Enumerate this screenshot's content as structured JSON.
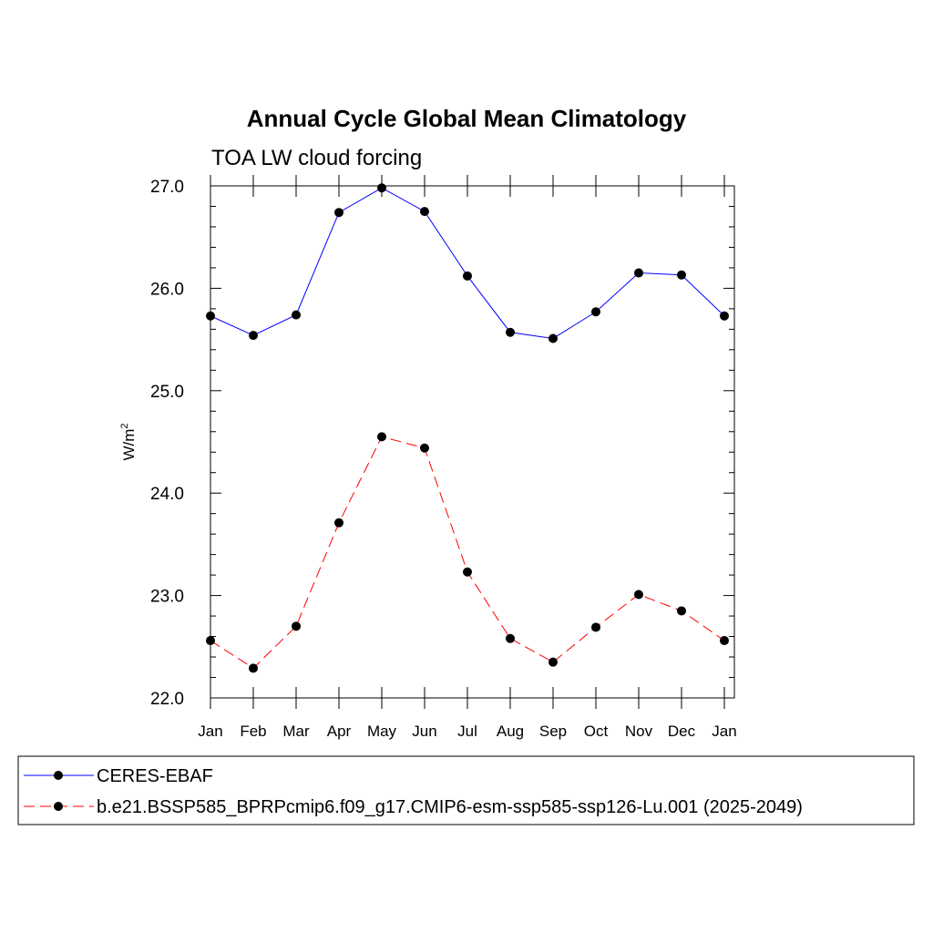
{
  "chart_data": {
    "type": "line",
    "title": "Annual Cycle Global Mean Climatology",
    "subtitle": "TOA LW cloud forcing",
    "ylabel": "W/m",
    "ylabel_sup": "2",
    "xlabel": "",
    "categories": [
      "Jan",
      "Feb",
      "Mar",
      "Apr",
      "May",
      "Jun",
      "Jul",
      "Aug",
      "Sep",
      "Oct",
      "Nov",
      "Dec",
      "Jan"
    ],
    "ylim": [
      22.0,
      27.0
    ],
    "yticks": [
      22.0,
      23.0,
      24.0,
      25.0,
      26.0,
      27.0
    ],
    "ytick_labels": [
      "22.0",
      "23.0",
      "24.0",
      "25.0",
      "26.0",
      "27.0"
    ],
    "legend_position": "bottom",
    "grid": false,
    "series": [
      {
        "name": "CERES-EBAF",
        "color": "#0000ff",
        "dash": "solid",
        "marker": "filled-circle",
        "values": [
          25.73,
          25.54,
          25.74,
          26.74,
          26.98,
          26.75,
          26.12,
          25.57,
          25.51,
          25.77,
          26.15,
          26.13,
          25.73
        ]
      },
      {
        "name": "b.e21.BSSP585_BPRPcmip6.f09_g17.CMIP6-esm-ssp585-ssp126-Lu.001 (2025-2049)",
        "color": "#ff0000",
        "dash": "dashed",
        "marker": "filled-circle",
        "values": [
          22.56,
          22.29,
          22.7,
          23.71,
          24.55,
          24.44,
          23.23,
          22.58,
          22.35,
          22.69,
          23.01,
          22.85,
          22.56
        ]
      }
    ]
  }
}
